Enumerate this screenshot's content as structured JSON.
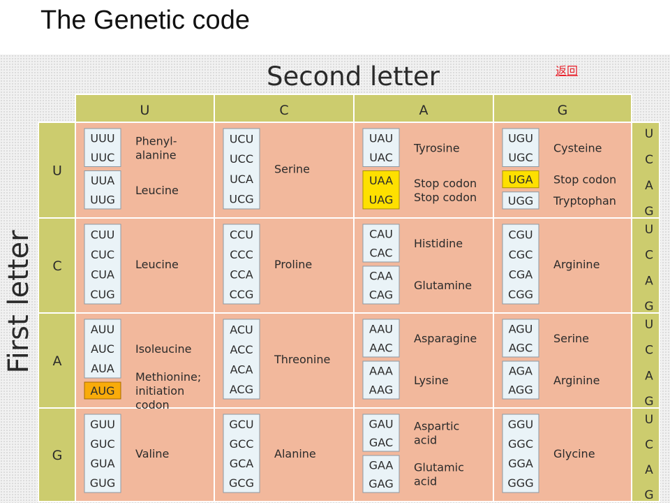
{
  "page": {
    "title": "The Genetic code",
    "back_link": "返回"
  },
  "table": {
    "second_letter_title": "Second letter",
    "first_letter_title": "First letter",
    "second_letters": [
      "U",
      "C",
      "A",
      "G"
    ],
    "first_letters": [
      "U",
      "C",
      "A",
      "G"
    ],
    "third_letters": [
      "U",
      "C",
      "A",
      "G"
    ],
    "rows": [
      {
        "first": "U",
        "cells": [
          {
            "second": "U",
            "groups": [
              {
                "codons": [
                  "UUU",
                  "UUC"
                ],
                "names": [
                  "Phenyl-",
                  "alanine"
                ]
              },
              {
                "codons": [
                  "UUA",
                  "UUG"
                ],
                "names": [
                  "Leucine"
                ]
              }
            ]
          },
          {
            "second": "C",
            "groups": [
              {
                "codons": [
                  "UCU",
                  "UCC",
                  "UCA",
                  "UCG"
                ],
                "names": [
                  "Serine"
                ]
              }
            ]
          },
          {
            "second": "A",
            "groups": [
              {
                "codons": [
                  "UAU",
                  "UAC"
                ],
                "names": [
                  "Tyrosine"
                ]
              },
              {
                "codons": [
                  "UAA",
                  "UAG"
                ],
                "names": [
                  "Stop codon",
                  "Stop codon"
                ],
                "highlight": "stop"
              }
            ]
          },
          {
            "second": "G",
            "groups": [
              {
                "codons": [
                  "UGU",
                  "UGC"
                ],
                "names": [
                  "Cysteine"
                ]
              },
              {
                "codons": [
                  "UGA"
                ],
                "names": [
                  "Stop codon"
                ],
                "highlight": "stop"
              },
              {
                "codons": [
                  "UGG"
                ],
                "names": [
                  "Tryptophan"
                ]
              }
            ]
          }
        ]
      },
      {
        "first": "C",
        "cells": [
          {
            "second": "U",
            "groups": [
              {
                "codons": [
                  "CUU",
                  "CUC",
                  "CUA",
                  "CUG"
                ],
                "names": [
                  "Leucine"
                ]
              }
            ]
          },
          {
            "second": "C",
            "groups": [
              {
                "codons": [
                  "CCU",
                  "CCC",
                  "CCA",
                  "CCG"
                ],
                "names": [
                  "Proline"
                ]
              }
            ]
          },
          {
            "second": "A",
            "groups": [
              {
                "codons": [
                  "CAU",
                  "CAC"
                ],
                "names": [
                  "Histidine"
                ]
              },
              {
                "codons": [
                  "CAA",
                  "CAG"
                ],
                "names": [
                  "Glutamine"
                ]
              }
            ]
          },
          {
            "second": "G",
            "groups": [
              {
                "codons": [
                  "CGU",
                  "CGC",
                  "CGA",
                  "CGG"
                ],
                "names": [
                  "Arginine"
                ]
              }
            ]
          }
        ]
      },
      {
        "first": "A",
        "cells": [
          {
            "second": "U",
            "groups": [
              {
                "codons": [
                  "AUU",
                  "AUC",
                  "AUA"
                ],
                "names": [
                  "Isoleucine"
                ]
              },
              {
                "codons": [
                  "AUG"
                ],
                "names": [
                  "Methionine;",
                  "initiation",
                  "codon"
                ],
                "highlight": "start"
              }
            ]
          },
          {
            "second": "C",
            "groups": [
              {
                "codons": [
                  "ACU",
                  "ACC",
                  "ACA",
                  "ACG"
                ],
                "names": [
                  "Threonine"
                ]
              }
            ]
          },
          {
            "second": "A",
            "groups": [
              {
                "codons": [
                  "AAU",
                  "AAC"
                ],
                "names": [
                  "Asparagine"
                ]
              },
              {
                "codons": [
                  "AAA",
                  "AAG"
                ],
                "names": [
                  "Lysine"
                ]
              }
            ]
          },
          {
            "second": "G",
            "groups": [
              {
                "codons": [
                  "AGU",
                  "AGC"
                ],
                "names": [
                  "Serine"
                ]
              },
              {
                "codons": [
                  "AGA",
                  "AGG"
                ],
                "names": [
                  "Arginine"
                ]
              }
            ]
          }
        ]
      },
      {
        "first": "G",
        "cells": [
          {
            "second": "U",
            "groups": [
              {
                "codons": [
                  "GUU",
                  "GUC",
                  "GUA",
                  "GUG"
                ],
                "names": [
                  "Valine"
                ]
              }
            ]
          },
          {
            "second": "C",
            "groups": [
              {
                "codons": [
                  "GCU",
                  "GCC",
                  "GCA",
                  "GCG"
                ],
                "names": [
                  "Alanine"
                ]
              }
            ]
          },
          {
            "second": "A",
            "groups": [
              {
                "codons": [
                  "GAU",
                  "GAC"
                ],
                "names": [
                  "Aspartic",
                  "acid"
                ]
              },
              {
                "codons": [
                  "GAA",
                  "GAG"
                ],
                "names": [
                  "Glutamic",
                  "acid"
                ]
              }
            ]
          },
          {
            "second": "G",
            "groups": [
              {
                "codons": [
                  "GGU",
                  "GGC",
                  "GGA",
                  "GGG"
                ],
                "names": [
                  "Glycine"
                ]
              }
            ]
          }
        ]
      }
    ]
  },
  "colors": {
    "cell_background": "#f2b89c",
    "header_background": "#cccc6e",
    "codon_box": "#eaf3f7",
    "codon_box_border": "#8a9aa6",
    "stop_highlight": "#fee000",
    "start_highlight": "#f9ab0a",
    "grid_line": "#ffffff",
    "link": "#e8202a"
  }
}
